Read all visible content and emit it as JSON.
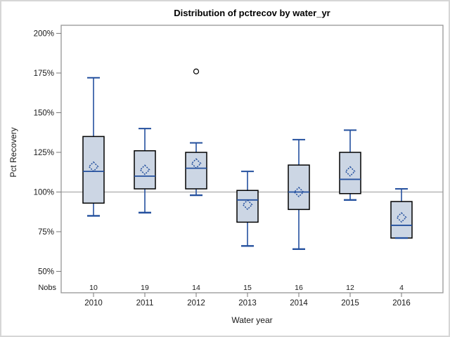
{
  "window": {
    "title": "Distribution of pctrecov by water_yr"
  },
  "chart_data": {
    "type": "boxplot",
    "title": "Distribution of pctrecov by water_yr",
    "xlabel": "Water year",
    "ylabel": "Pct Recovery",
    "nobs_label": "Nobs",
    "y_tick_values": [
      200,
      175,
      150,
      125,
      100,
      75,
      50
    ],
    "y_tick_labels": [
      "200%",
      "175%",
      "150%",
      "125%",
      "100%",
      "75%",
      "50%"
    ],
    "ylim": [
      50,
      200
    ],
    "reference_line": 100,
    "grid": "off",
    "categories": [
      "2010",
      "2011",
      "2012",
      "2013",
      "2014",
      "2015",
      "2016"
    ],
    "nobs": [
      10,
      19,
      14,
      15,
      16,
      12,
      4
    ],
    "series": [
      {
        "year": "2010",
        "n": 10,
        "whisker_low": 85,
        "q1": 93,
        "median": 113,
        "mean": 116,
        "q3": 135,
        "whisker_high": 172,
        "outliers": []
      },
      {
        "year": "2011",
        "n": 19,
        "whisker_low": 87,
        "q1": 102,
        "median": 110,
        "mean": 114,
        "q3": 126,
        "whisker_high": 140,
        "outliers": []
      },
      {
        "year": "2012",
        "n": 14,
        "whisker_low": 98,
        "q1": 102,
        "median": 115,
        "mean": 118,
        "q3": 125,
        "whisker_high": 131,
        "outliers": [
          176
        ]
      },
      {
        "year": "2013",
        "n": 15,
        "whisker_low": 66,
        "q1": 81,
        "median": 95,
        "mean": 92,
        "q3": 101,
        "whisker_high": 113,
        "outliers": []
      },
      {
        "year": "2014",
        "n": 16,
        "whisker_low": 64,
        "q1": 89,
        "median": 100,
        "mean": 100,
        "q3": 117,
        "whisker_high": 133,
        "outliers": []
      },
      {
        "year": "2015",
        "n": 12,
        "whisker_low": 95,
        "q1": 99,
        "median": 108,
        "mean": 113,
        "q3": 125,
        "whisker_high": 139,
        "outliers": []
      },
      {
        "year": "2016",
        "n": 4,
        "whisker_low": 71,
        "q1": 71,
        "median": 79,
        "mean": 84,
        "q3": 94,
        "whisker_high": 102,
        "outliers": []
      }
    ],
    "colors": {
      "box_fill": "#ccd6e4",
      "box_border": "#000000",
      "whisker": "#24509e",
      "median": "#24509e",
      "mean_marker": "#24509e",
      "outlier": "#000000",
      "reference_line": "#ababab",
      "frame": "#969696",
      "tick": "#7a7a7a"
    }
  }
}
